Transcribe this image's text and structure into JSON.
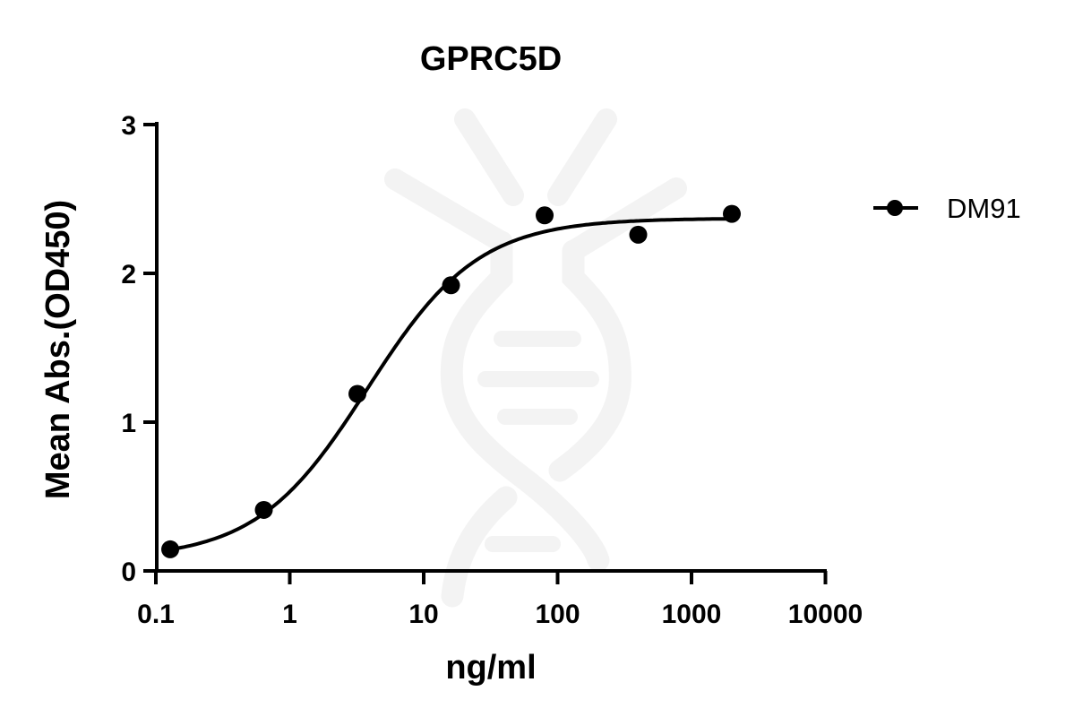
{
  "chart_data": {
    "type": "scatter",
    "title": "GPRC5D",
    "xlabel": "ng/ml",
    "ylabel": "Mean Abs.(OD450)",
    "xscale": "log",
    "xlim": [
      0.1,
      10000
    ],
    "ylim": [
      0,
      3
    ],
    "x_ticks": [
      0.1,
      1,
      10,
      100,
      1000,
      10000
    ],
    "x_tick_labels": [
      "0.1",
      "1",
      "10",
      "100",
      "1000",
      "10000"
    ],
    "y_ticks": [
      0,
      1,
      2,
      3
    ],
    "y_tick_labels": [
      "0",
      "1",
      "2",
      "3"
    ],
    "grid": false,
    "legend_position": "right",
    "series": [
      {
        "name": "DM91",
        "marker": "circle",
        "color": "#000000",
        "x": [
          0.128,
          0.64,
          3.2,
          16,
          80,
          400,
          2000
        ],
        "y": [
          0.145,
          0.41,
          1.19,
          1.92,
          2.39,
          2.26,
          2.4
        ],
        "fit": {
          "model": "4PL",
          "bottom": 0.08,
          "top": 2.37,
          "ec50": 3.8,
          "hill": 1.05,
          "x_range": [
            0.128,
            2000
          ]
        }
      }
    ]
  },
  "watermark": {
    "shape": "dna-icon",
    "color": "#f3f3f3"
  }
}
